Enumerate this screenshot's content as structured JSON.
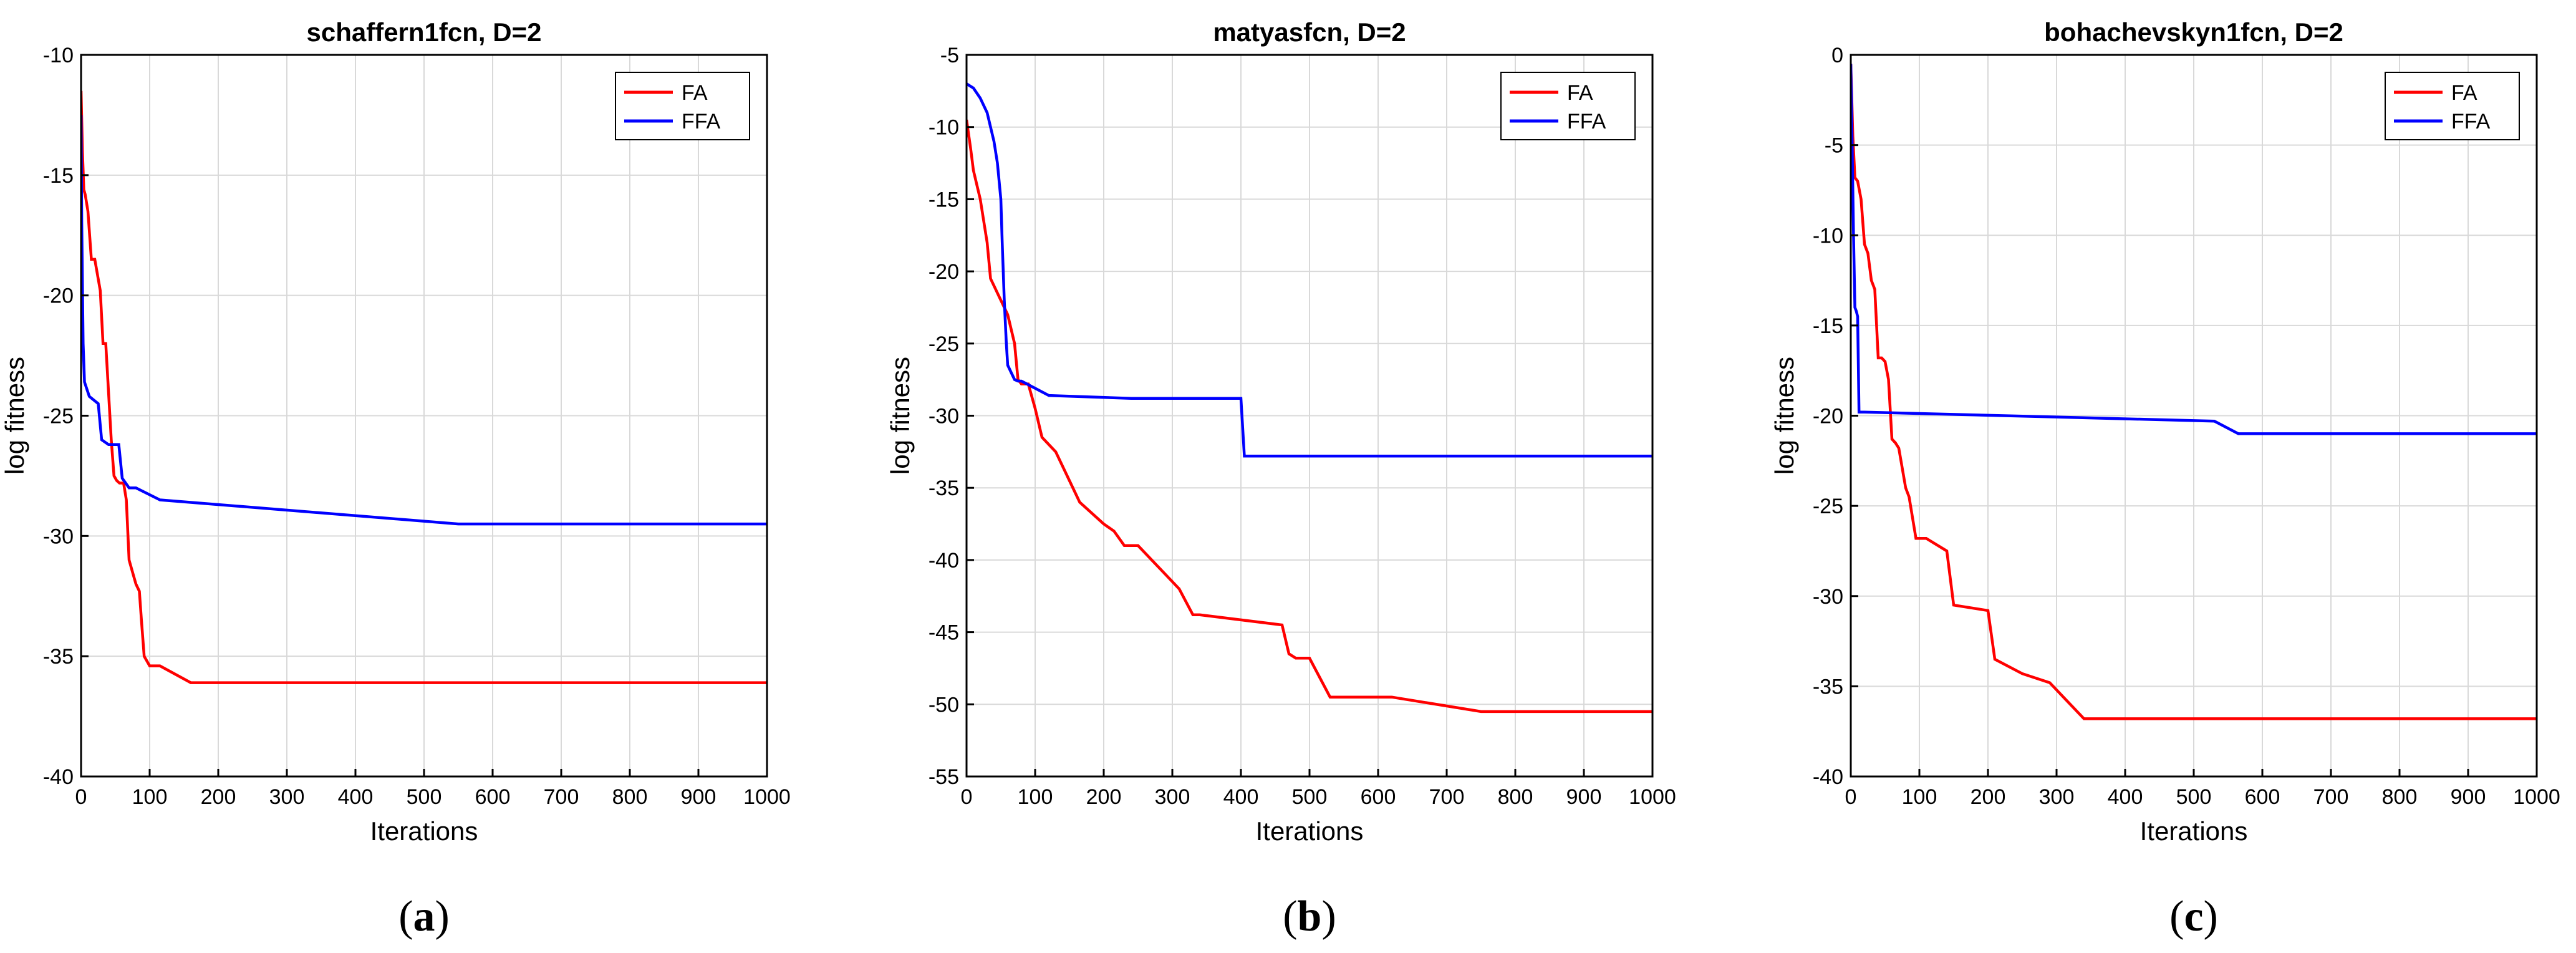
{
  "colors": {
    "FA": "#ff0000",
    "FFA": "#0000ff"
  },
  "chart_data": [
    {
      "type": "line",
      "title": "schaffern1fcn, D=2",
      "xlabel": "Iterations",
      "ylabel": "log fitness",
      "xlim": [
        0,
        1000
      ],
      "ylim": [
        -40,
        -10
      ],
      "xticks": [
        0,
        100,
        200,
        300,
        400,
        500,
        600,
        700,
        800,
        900,
        1000
      ],
      "yticks": [
        -40,
        -35,
        -30,
        -25,
        -20,
        -15,
        -10
      ],
      "grid": true,
      "legend": "top-right",
      "panel": {
        "open": "(",
        "letter": "a",
        "close": ")"
      },
      "series": [
        {
          "name": "FA",
          "color": "#ff0000",
          "x": [
            0,
            2,
            4,
            6,
            10,
            15,
            20,
            28,
            32,
            36,
            40,
            44,
            48,
            52,
            56,
            62,
            66,
            70,
            75,
            80,
            85,
            88,
            92,
            100,
            115,
            160,
            1000
          ],
          "y": [
            -11.5,
            -14,
            -15.6,
            -15.8,
            -16.5,
            -18.5,
            -18.5,
            -19.8,
            -22.0,
            -22.0,
            -24.0,
            -26.0,
            -27.5,
            -27.7,
            -27.8,
            -27.8,
            -28.5,
            -31.0,
            -31.5,
            -32.0,
            -32.3,
            -33.5,
            -35.0,
            -35.4,
            -35.4,
            -36.1,
            -36.1
          ]
        },
        {
          "name": "FFA",
          "color": "#0000ff",
          "x": [
            0,
            1,
            3,
            5,
            12,
            25,
            30,
            40,
            55,
            60,
            70,
            80,
            115,
            550,
            1000
          ],
          "y": [
            -12.5,
            -17,
            -22,
            -23.6,
            -24.2,
            -24.5,
            -26.0,
            -26.2,
            -26.2,
            -27.6,
            -28.0,
            -28.0,
            -28.5,
            -29.5,
            -29.5
          ]
        }
      ]
    },
    {
      "type": "line",
      "title": "matyasfcn, D=2",
      "xlabel": "Iterations",
      "ylabel": "log fitness",
      "xlim": [
        0,
        1000
      ],
      "ylim": [
        -55,
        -5
      ],
      "xticks": [
        0,
        100,
        200,
        300,
        400,
        500,
        600,
        700,
        800,
        900,
        1000
      ],
      "yticks": [
        -55,
        -50,
        -45,
        -40,
        -35,
        -30,
        -25,
        -20,
        -15,
        -10,
        -5
      ],
      "grid": true,
      "legend": "top-right",
      "panel": {
        "open": "(",
        "letter": "b",
        "close": ")"
      },
      "series": [
        {
          "name": "FA",
          "color": "#ff0000",
          "x": [
            0,
            3,
            6,
            10,
            15,
            20,
            25,
            30,
            35,
            40,
            45,
            50,
            55,
            60,
            65,
            70,
            75,
            80,
            90,
            100,
            110,
            130,
            150,
            165,
            200,
            215,
            230,
            250,
            270,
            290,
            310,
            330,
            340,
            460,
            470,
            480,
            500,
            530,
            560,
            620,
            750,
            760,
            1000
          ],
          "y": [
            -9.5,
            -10.5,
            -11.5,
            -13.0,
            -14.0,
            -15.0,
            -16.5,
            -18.0,
            -20.5,
            -21.0,
            -21.5,
            -22.0,
            -22.5,
            -23.0,
            -24.0,
            -25.0,
            -27.5,
            -27.8,
            -27.8,
            -29.5,
            -31.5,
            -32.5,
            -34.5,
            -36.0,
            -37.5,
            -38.0,
            -39.0,
            -39.0,
            -40.0,
            -41.0,
            -42.0,
            -43.8,
            -43.8,
            -44.5,
            -46.5,
            -46.8,
            -46.8,
            -49.5,
            -49.5,
            -49.5,
            -50.5,
            -50.5,
            -50.5
          ]
        },
        {
          "name": "FFA",
          "color": "#0000ff",
          "x": [
            0,
            10,
            20,
            30,
            40,
            45,
            50,
            52,
            55,
            58,
            60,
            65,
            70,
            75,
            80,
            120,
            240,
            400,
            405,
            1000
          ],
          "y": [
            -7.0,
            -7.3,
            -8.0,
            -9.0,
            -11.0,
            -12.5,
            -15.0,
            -18.0,
            -22.0,
            -25.0,
            -26.5,
            -27.0,
            -27.5,
            -27.6,
            -27.6,
            -28.6,
            -28.8,
            -28.8,
            -32.8,
            -32.8
          ]
        }
      ]
    },
    {
      "type": "line",
      "title": "bohachevskyn1fcn, D=2",
      "xlabel": "Iterations",
      "ylabel": "log fitness",
      "xlim": [
        0,
        1000
      ],
      "ylim": [
        -40,
        0
      ],
      "xticks": [
        0,
        100,
        200,
        300,
        400,
        500,
        600,
        700,
        800,
        900,
        1000
      ],
      "yticks": [
        -40,
        -35,
        -30,
        -25,
        -20,
        -15,
        -10,
        -5,
        0
      ],
      "grid": true,
      "legend": "top-right",
      "panel": {
        "open": "(",
        "letter": "c",
        "close": ")"
      },
      "series": [
        {
          "name": "FA",
          "color": "#ff0000",
          "x": [
            0,
            3,
            6,
            10,
            15,
            20,
            25,
            30,
            35,
            40,
            45,
            50,
            55,
            60,
            65,
            70,
            80,
            85,
            95,
            100,
            110,
            140,
            150,
            200,
            210,
            250,
            290,
            340,
            350,
            1000
          ],
          "y": [
            -0.5,
            -4.5,
            -6.8,
            -7.0,
            -8.0,
            -10.5,
            -11.0,
            -12.5,
            -13.0,
            -16.8,
            -16.8,
            -17.0,
            -18.0,
            -21.3,
            -21.5,
            -21.8,
            -24.0,
            -24.5,
            -26.8,
            -26.8,
            -26.8,
            -27.5,
            -30.5,
            -30.8,
            -33.5,
            -34.3,
            -34.8,
            -36.8,
            -36.8,
            -36.8
          ]
        },
        {
          "name": "FFA",
          "color": "#0000ff",
          "x": [
            0,
            2,
            4,
            6,
            8,
            10,
            12,
            15,
            20,
            530,
            565,
            1000
          ],
          "y": [
            -0.5,
            -5.0,
            -10.0,
            -14.0,
            -14.2,
            -14.5,
            -19.8,
            -19.8,
            -19.8,
            -20.3,
            -21.0,
            -21.0
          ]
        }
      ]
    }
  ]
}
